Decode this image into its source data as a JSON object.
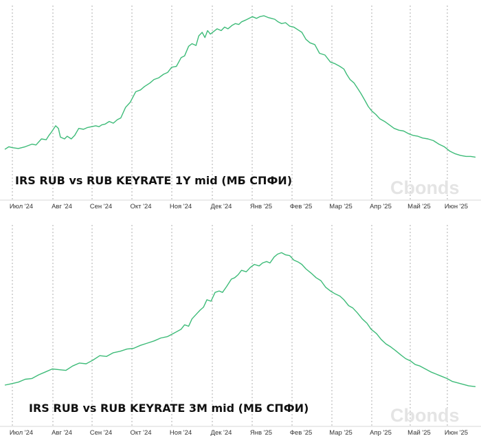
{
  "colors": {
    "line": "#3dbb78",
    "grid": "#9a9a9a",
    "watermark": "#e4e4e4"
  },
  "watermark": "Cbonds",
  "chart_data": [
    {
      "type": "line",
      "title": "IRS RUB vs RUB KEYRATE 1Y mid (МБ СПФИ)",
      "xlabel": "",
      "ylabel": "",
      "grid": true,
      "x_ticks": [
        "Июл '24",
        "Авг '24",
        "Сен '24",
        "Окт '24",
        "Ноя '24",
        "Дек '24",
        "Янв '25",
        "Фев '25",
        "Мар '25",
        "Апр '25",
        "Май '25",
        "Июн '25"
      ],
      "ylim": [
        0,
        100
      ],
      "series": [
        {
          "values": [
            [
              0.0,
              20.0
            ],
            [
              0.3,
              21.5
            ],
            [
              0.55,
              21.0
            ],
            [
              1.0,
              20.5
            ],
            [
              1.5,
              21.5
            ],
            [
              2.0,
              23.0
            ],
            [
              2.3,
              22.5
            ],
            [
              2.7,
              26.0
            ],
            [
              3.05,
              25.5
            ],
            [
              3.25,
              28.0
            ],
            [
              3.45,
              30.0
            ],
            [
              3.75,
              33.5
            ],
            [
              3.95,
              32.0
            ],
            [
              4.1,
              27.0
            ],
            [
              4.4,
              26.0
            ],
            [
              4.6,
              27.5
            ],
            [
              4.9,
              26.0
            ],
            [
              5.15,
              28.0
            ],
            [
              5.45,
              32.0
            ],
            [
              5.8,
              31.5
            ],
            [
              6.1,
              32.5
            ],
            [
              6.4,
              33.0
            ],
            [
              6.7,
              33.5
            ],
            [
              6.95,
              33.0
            ],
            [
              7.15,
              34.0
            ],
            [
              7.4,
              34.5
            ],
            [
              7.7,
              36.0
            ],
            [
              8.0,
              35.0
            ],
            [
              8.3,
              37.0
            ],
            [
              8.55,
              38.0
            ],
            [
              8.9,
              44.0
            ],
            [
              9.25,
              47.0
            ],
            [
              9.65,
              53.0
            ],
            [
              10.0,
              54.0
            ],
            [
              10.3,
              56.0
            ],
            [
              10.7,
              58.0
            ],
            [
              11.0,
              60.0
            ],
            [
              11.35,
              61.0
            ],
            [
              11.7,
              63.0
            ],
            [
              12.0,
              64.0
            ],
            [
              12.3,
              67.0
            ],
            [
              12.65,
              67.5
            ],
            [
              13.0,
              72.5
            ],
            [
              13.25,
              73.5
            ],
            [
              13.55,
              79.0
            ],
            [
              13.8,
              80.5
            ],
            [
              14.1,
              79.5
            ],
            [
              14.3,
              85.0
            ],
            [
              14.55,
              87.0
            ],
            [
              14.75,
              84.0
            ],
            [
              14.95,
              88.0
            ],
            [
              15.15,
              86.0
            ],
            [
              15.4,
              87.5
            ],
            [
              15.65,
              89.0
            ],
            [
              15.95,
              88.0
            ],
            [
              16.2,
              90.0
            ],
            [
              16.45,
              89.0
            ],
            [
              16.75,
              91.0
            ],
            [
              17.0,
              92.0
            ],
            [
              17.25,
              91.5
            ],
            [
              17.45,
              93.0
            ],
            [
              17.75,
              94.0
            ],
            [
              18.0,
              95.0
            ],
            [
              18.25,
              96.0
            ],
            [
              18.55,
              95.0
            ],
            [
              18.8,
              96.0
            ],
            [
              19.1,
              96.5
            ],
            [
              19.4,
              95.5
            ],
            [
              19.65,
              95.0
            ],
            [
              19.9,
              94.5
            ],
            [
              20.15,
              93.0
            ],
            [
              20.4,
              92.0
            ],
            [
              20.7,
              92.5
            ],
            [
              21.0,
              90.5
            ],
            [
              21.3,
              90.0
            ],
            [
              21.6,
              88.5
            ],
            [
              21.9,
              87.0
            ],
            [
              22.2,
              83.0
            ],
            [
              22.5,
              81.0
            ],
            [
              22.85,
              80.0
            ],
            [
              23.2,
              75.0
            ],
            [
              23.6,
              74.0
            ],
            [
              24.0,
              70.0
            ],
            [
              24.35,
              69.0
            ],
            [
              24.7,
              67.5
            ],
            [
              25.0,
              66.0
            ],
            [
              25.2,
              63.0
            ],
            [
              25.45,
              60.0
            ],
            [
              25.75,
              58.0
            ],
            [
              26.0,
              55.0
            ],
            [
              26.25,
              52.0
            ],
            [
              26.55,
              48.0
            ],
            [
              26.8,
              44.5
            ],
            [
              27.05,
              42.0
            ],
            [
              27.35,
              40.0
            ],
            [
              27.65,
              37.5
            ],
            [
              28.0,
              36.0
            ],
            [
              28.35,
              34.0
            ],
            [
              28.7,
              32.0
            ],
            [
              29.05,
              31.0
            ],
            [
              29.4,
              30.5
            ],
            [
              29.75,
              29.0
            ],
            [
              30.1,
              28.0
            ],
            [
              30.45,
              27.5
            ],
            [
              30.8,
              26.5
            ],
            [
              31.2,
              26.0
            ],
            [
              31.6,
              25.0
            ],
            [
              32.0,
              23.0
            ],
            [
              32.4,
              21.5
            ],
            [
              32.8,
              19.0
            ],
            [
              33.2,
              17.5
            ],
            [
              33.6,
              16.5
            ],
            [
              34.0,
              16.0
            ],
            [
              34.35,
              16.0
            ],
            [
              34.7,
              15.5
            ]
          ]
        }
      ]
    },
    {
      "type": "line",
      "title": "IRS RUB vs RUB KEYRATE 3M mid (МБ СПФИ)",
      "xlabel": "",
      "ylabel": "",
      "grid": true,
      "x_ticks": [
        "Июл '24",
        "Авг '24",
        "Сен '24",
        "Окт '24",
        "Ноя '24",
        "Дек '24",
        "Янв '25",
        "Фев '25",
        "Мар '25",
        "Апр '25",
        "Май '25",
        "Июн '25"
      ],
      "ylim": [
        0,
        100
      ],
      "series": [
        {
          "values": [
            [
              0.0,
              7.0
            ],
            [
              0.5,
              8.0
            ],
            [
              1.0,
              9.0
            ],
            [
              1.5,
              11.0
            ],
            [
              2.0,
              11.5
            ],
            [
              2.5,
              14.0
            ],
            [
              3.0,
              16.0
            ],
            [
              3.5,
              18.0
            ],
            [
              4.0,
              17.5
            ],
            [
              4.5,
              17.0
            ],
            [
              5.0,
              20.0
            ],
            [
              5.5,
              22.0
            ],
            [
              6.0,
              21.5
            ],
            [
              6.5,
              24.0
            ],
            [
              7.0,
              27.0
            ],
            [
              7.5,
              26.5
            ],
            [
              8.0,
              29.0
            ],
            [
              8.5,
              30.0
            ],
            [
              9.0,
              31.5
            ],
            [
              9.5,
              32.0
            ],
            [
              10.0,
              34.0
            ],
            [
              10.5,
              35.5
            ],
            [
              11.0,
              37.0
            ],
            [
              11.5,
              39.0
            ],
            [
              12.0,
              40.0
            ],
            [
              12.5,
              42.5
            ],
            [
              13.0,
              45.0
            ],
            [
              13.25,
              48.0
            ],
            [
              13.55,
              47.0
            ],
            [
              13.8,
              52.0
            ],
            [
              14.1,
              55.0
            ],
            [
              14.4,
              58.0
            ],
            [
              14.65,
              60.0
            ],
            [
              14.9,
              65.0
            ],
            [
              15.2,
              64.0
            ],
            [
              15.5,
              70.0
            ],
            [
              15.8,
              71.0
            ],
            [
              16.05,
              70.0
            ],
            [
              16.35,
              74.0
            ],
            [
              16.7,
              79.0
            ],
            [
              16.95,
              80.0
            ],
            [
              17.2,
              82.0
            ],
            [
              17.45,
              85.0
            ],
            [
              17.8,
              84.0
            ],
            [
              18.1,
              87.0
            ],
            [
              18.4,
              89.0
            ],
            [
              18.75,
              88.0
            ],
            [
              19.0,
              90.0
            ],
            [
              19.3,
              91.0
            ],
            [
              19.55,
              90.0
            ],
            [
              19.85,
              94.0
            ],
            [
              20.1,
              96.0
            ],
            [
              20.4,
              97.0
            ],
            [
              20.7,
              95.5
            ],
            [
              21.0,
              95.0
            ],
            [
              21.3,
              92.0
            ],
            [
              21.65,
              90.5
            ],
            [
              21.9,
              89.0
            ],
            [
              22.2,
              86.0
            ],
            [
              22.6,
              83.0
            ],
            [
              22.95,
              80.0
            ],
            [
              23.3,
              78.0
            ],
            [
              23.65,
              73.5
            ],
            [
              24.0,
              71.0
            ],
            [
              24.35,
              69.0
            ],
            [
              24.7,
              67.5
            ],
            [
              25.0,
              65.0
            ],
            [
              25.35,
              61.0
            ],
            [
              25.65,
              59.5
            ],
            [
              26.0,
              56.0
            ],
            [
              26.35,
              52.0
            ],
            [
              26.7,
              49.0
            ],
            [
              27.0,
              45.0
            ],
            [
              27.4,
              42.0
            ],
            [
              27.75,
              38.0
            ],
            [
              28.1,
              35.0
            ],
            [
              28.45,
              33.0
            ],
            [
              28.8,
              30.5
            ],
            [
              29.2,
              27.5
            ],
            [
              29.55,
              25.0
            ],
            [
              29.9,
              23.5
            ],
            [
              30.25,
              21.0
            ],
            [
              30.6,
              20.0
            ],
            [
              31.0,
              18.0
            ],
            [
              31.4,
              16.0
            ],
            [
              31.8,
              14.5
            ],
            [
              32.2,
              13.0
            ],
            [
              32.6,
              11.5
            ],
            [
              33.0,
              9.5
            ],
            [
              33.4,
              8.5
            ],
            [
              33.8,
              7.5
            ],
            [
              34.2,
              6.5
            ],
            [
              34.7,
              6.0
            ]
          ]
        }
      ]
    }
  ]
}
